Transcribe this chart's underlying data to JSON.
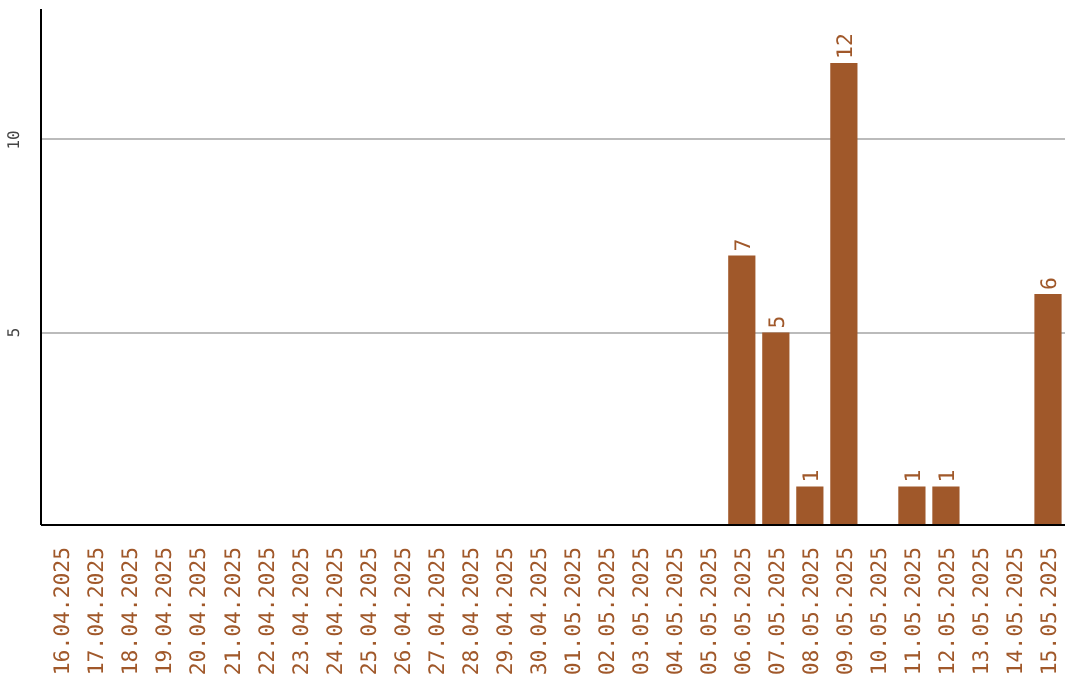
{
  "chart_data": {
    "type": "bar",
    "categories": [
      "16.04.2025",
      "17.04.2025",
      "18.04.2025",
      "19.04.2025",
      "20.04.2025",
      "21.04.2025",
      "22.04.2025",
      "23.04.2025",
      "24.04.2025",
      "25.04.2025",
      "26.04.2025",
      "27.04.2025",
      "28.04.2025",
      "29.04.2025",
      "30.04.2025",
      "01.05.2025",
      "02.05.2025",
      "03.05.2025",
      "04.05.2025",
      "05.05.2025",
      "06.05.2025",
      "07.05.2025",
      "08.05.2025",
      "09.05.2025",
      "10.05.2025",
      "11.05.2025",
      "12.05.2025",
      "13.05.2025",
      "14.05.2025",
      "15.05.2025"
    ],
    "values": [
      0,
      0,
      0,
      0,
      0,
      0,
      0,
      0,
      0,
      0,
      0,
      0,
      0,
      0,
      0,
      0,
      0,
      0,
      0,
      0,
      7,
      5,
      1,
      12,
      0,
      1,
      1,
      0,
      0,
      6
    ],
    "value_labels": [
      null,
      null,
      null,
      null,
      null,
      null,
      null,
      null,
      null,
      null,
      null,
      null,
      null,
      null,
      null,
      null,
      null,
      null,
      null,
      null,
      "7",
      "5",
      "1",
      "12",
      null,
      "1",
      "1",
      null,
      null,
      "6"
    ],
    "color": "#a0582a",
    "ylim": [
      0,
      13.4
    ],
    "yticks": [
      5,
      10
    ],
    "grid": "y"
  }
}
